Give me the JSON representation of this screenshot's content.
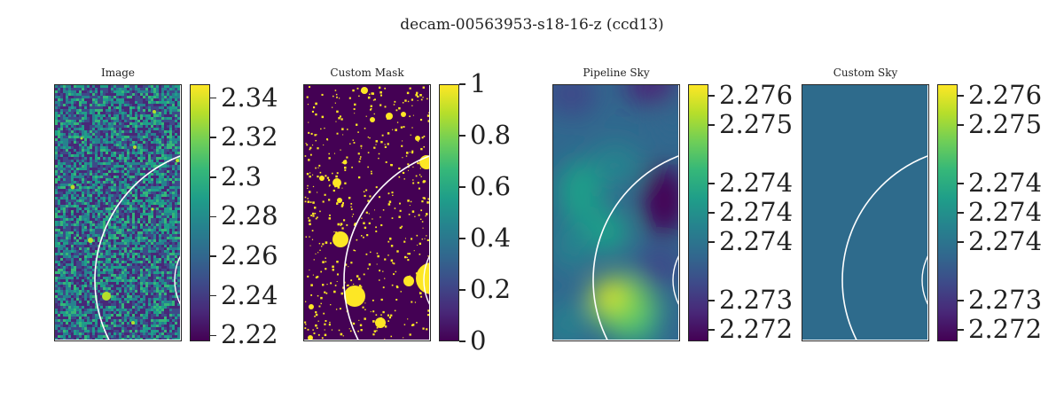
{
  "colors": {
    "viridis": [
      "#440154",
      "#482878",
      "#3e4a89",
      "#31688e",
      "#26828e",
      "#1f9e89",
      "#35b779",
      "#6ece58",
      "#b5de2b",
      "#fde725"
    ],
    "mask_background": "#440154",
    "mask_foreground": "#fde725",
    "custom_sky_fill": "#2e6b8c",
    "ring_color": "#ffffff"
  },
  "chart_data": {
    "type": "heatmap",
    "title": "decam-00563953-s18-16-z (ccd13)",
    "panels": [
      {
        "id": "image",
        "title": "Image",
        "content": "noise",
        "colorbar_ticks": [
          "2.34",
          "2.32",
          "2.3",
          "2.28",
          "2.26",
          "2.24",
          "2.22"
        ],
        "colorbar_tick_values": [
          2.34,
          2.32,
          2.3,
          2.28,
          2.26,
          2.24,
          2.22
        ],
        "colorbar_range": [
          2.217,
          2.347
        ]
      },
      {
        "id": "mask",
        "title": "Custom Mask",
        "content": "mask",
        "colorbar_ticks": [
          "1",
          "0.8",
          "0.6",
          "0.4",
          "0.2",
          "0"
        ],
        "colorbar_tick_values": [
          1,
          0.8,
          0.6,
          0.4,
          0.2,
          0
        ],
        "colorbar_range": [
          0,
          1
        ]
      },
      {
        "id": "pipeline-sky",
        "title": "Pipeline Sky",
        "content": "smooth",
        "colorbar_ticks": [
          "2.276",
          "2.275",
          "2.274",
          "2.274",
          "2.274",
          "2.273",
          "2.272"
        ],
        "colorbar_tick_values": [
          2.276,
          2.2755,
          2.2745,
          2.274,
          2.2735,
          2.2725,
          2.272
        ],
        "colorbar_range": [
          2.2718,
          2.2762
        ]
      },
      {
        "id": "custom-sky",
        "title": "Custom Sky",
        "content": "flat",
        "colorbar_ticks": [
          "2.276",
          "2.275",
          "2.274",
          "2.274",
          "2.274",
          "2.273",
          "2.272"
        ],
        "colorbar_tick_values": [
          2.276,
          2.2755,
          2.2745,
          2.274,
          2.2735,
          2.2725,
          2.272
        ],
        "colorbar_range": [
          2.2718,
          2.2762
        ]
      }
    ]
  }
}
